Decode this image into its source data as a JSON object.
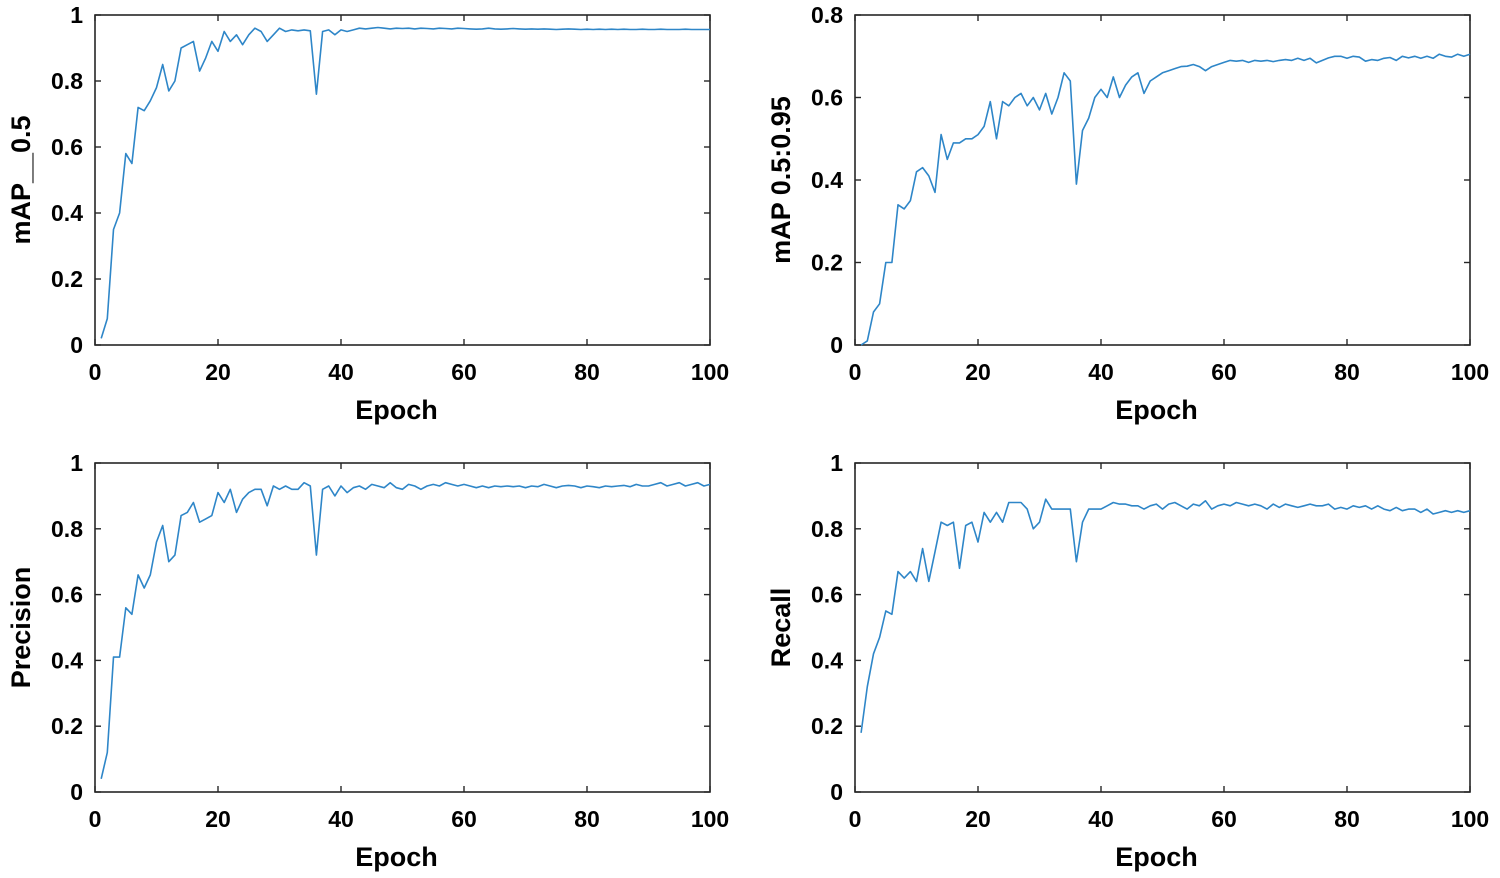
{
  "chart_data": [
    {
      "type": "line",
      "xlabel": "Epoch",
      "ylabel": "mAP__0.5",
      "xlim": [
        0,
        100
      ],
      "ylim": [
        0,
        1
      ],
      "xticks": [
        "0",
        "20",
        "40",
        "60",
        "80",
        "100"
      ],
      "yticks": [
        "0",
        "0.2",
        "0.4",
        "0.6",
        "0.8",
        "1"
      ],
      "grid": false,
      "line_color": "#2e86c8",
      "x": [
        1,
        2,
        3,
        4,
        5,
        6,
        7,
        8,
        9,
        10,
        11,
        12,
        13,
        14,
        15,
        16,
        17,
        18,
        19,
        20,
        21,
        22,
        23,
        24,
        25,
        26,
        27,
        28,
        29,
        30,
        31,
        32,
        33,
        34,
        35,
        36,
        37,
        38,
        39,
        40,
        41,
        42,
        43,
        44,
        45,
        46,
        47,
        48,
        49,
        50,
        51,
        52,
        53,
        54,
        55,
        56,
        57,
        58,
        59,
        60,
        61,
        62,
        63,
        64,
        65,
        66,
        67,
        68,
        69,
        70,
        71,
        72,
        73,
        74,
        75,
        76,
        77,
        78,
        79,
        80,
        81,
        82,
        83,
        84,
        85,
        86,
        87,
        88,
        89,
        90,
        91,
        92,
        93,
        94,
        95,
        96,
        97,
        98,
        99,
        100
      ],
      "y": [
        0.02,
        0.08,
        0.35,
        0.4,
        0.58,
        0.55,
        0.72,
        0.71,
        0.74,
        0.78,
        0.85,
        0.77,
        0.8,
        0.9,
        0.91,
        0.92,
        0.83,
        0.87,
        0.92,
        0.89,
        0.95,
        0.92,
        0.94,
        0.91,
        0.94,
        0.96,
        0.95,
        0.92,
        0.94,
        0.96,
        0.95,
        0.955,
        0.952,
        0.955,
        0.952,
        0.76,
        0.95,
        0.955,
        0.94,
        0.955,
        0.95,
        0.955,
        0.96,
        0.958,
        0.96,
        0.962,
        0.96,
        0.958,
        0.96,
        0.959,
        0.96,
        0.958,
        0.96,
        0.959,
        0.958,
        0.96,
        0.959,
        0.958,
        0.96,
        0.959,
        0.958,
        0.957,
        0.958,
        0.96,
        0.958,
        0.957,
        0.958,
        0.959,
        0.958,
        0.957,
        0.958,
        0.957,
        0.958,
        0.957,
        0.956,
        0.957,
        0.958,
        0.957,
        0.956,
        0.957,
        0.956,
        0.957,
        0.956,
        0.957,
        0.956,
        0.957,
        0.956,
        0.956,
        0.957,
        0.956,
        0.956,
        0.957,
        0.956,
        0.956,
        0.956,
        0.957,
        0.956,
        0.956,
        0.956,
        0.956
      ]
    },
    {
      "type": "line",
      "xlabel": "Epoch",
      "ylabel": "mAP 0.5:0.95",
      "xlim": [
        0,
        100
      ],
      "ylim": [
        0,
        0.8
      ],
      "xticks": [
        "0",
        "20",
        "40",
        "60",
        "80",
        "100"
      ],
      "yticks": [
        "0",
        "0.2",
        "0.4",
        "0.6",
        "0.8"
      ],
      "grid": false,
      "line_color": "#2e86c8",
      "x": [
        1,
        2,
        3,
        4,
        5,
        6,
        7,
        8,
        9,
        10,
        11,
        12,
        13,
        14,
        15,
        16,
        17,
        18,
        19,
        20,
        21,
        22,
        23,
        24,
        25,
        26,
        27,
        28,
        29,
        30,
        31,
        32,
        33,
        34,
        35,
        36,
        37,
        38,
        39,
        40,
        41,
        42,
        43,
        44,
        45,
        46,
        47,
        48,
        49,
        50,
        51,
        52,
        53,
        54,
        55,
        56,
        57,
        58,
        59,
        60,
        61,
        62,
        63,
        64,
        65,
        66,
        67,
        68,
        69,
        70,
        71,
        72,
        73,
        74,
        75,
        76,
        77,
        78,
        79,
        80,
        81,
        82,
        83,
        84,
        85,
        86,
        87,
        88,
        89,
        90,
        91,
        92,
        93,
        94,
        95,
        96,
        97,
        98,
        99,
        100
      ],
      "y": [
        0.0,
        0.01,
        0.08,
        0.1,
        0.2,
        0.2,
        0.34,
        0.33,
        0.35,
        0.42,
        0.43,
        0.41,
        0.37,
        0.51,
        0.45,
        0.49,
        0.49,
        0.5,
        0.5,
        0.51,
        0.53,
        0.59,
        0.5,
        0.59,
        0.58,
        0.6,
        0.61,
        0.58,
        0.6,
        0.57,
        0.61,
        0.56,
        0.6,
        0.66,
        0.64,
        0.39,
        0.52,
        0.55,
        0.6,
        0.62,
        0.6,
        0.65,
        0.6,
        0.63,
        0.65,
        0.66,
        0.61,
        0.64,
        0.65,
        0.66,
        0.665,
        0.67,
        0.675,
        0.676,
        0.68,
        0.675,
        0.665,
        0.675,
        0.68,
        0.685,
        0.69,
        0.688,
        0.69,
        0.685,
        0.69,
        0.688,
        0.69,
        0.687,
        0.69,
        0.692,
        0.69,
        0.695,
        0.69,
        0.695,
        0.684,
        0.69,
        0.696,
        0.7,
        0.7,
        0.695,
        0.7,
        0.698,
        0.688,
        0.692,
        0.69,
        0.695,
        0.697,
        0.69,
        0.7,
        0.696,
        0.7,
        0.695,
        0.7,
        0.695,
        0.705,
        0.7,
        0.698,
        0.705,
        0.7,
        0.705
      ]
    },
    {
      "type": "line",
      "xlabel": "Epoch",
      "ylabel": "Precision",
      "xlim": [
        0,
        100
      ],
      "ylim": [
        0,
        1
      ],
      "xticks": [
        "0",
        "20",
        "40",
        "60",
        "80",
        "100"
      ],
      "yticks": [
        "0",
        "0.2",
        "0.4",
        "0.6",
        "0.8",
        "1"
      ],
      "grid": false,
      "line_color": "#2e86c8",
      "x": [
        1,
        2,
        3,
        4,
        5,
        6,
        7,
        8,
        9,
        10,
        11,
        12,
        13,
        14,
        15,
        16,
        17,
        18,
        19,
        20,
        21,
        22,
        23,
        24,
        25,
        26,
        27,
        28,
        29,
        30,
        31,
        32,
        33,
        34,
        35,
        36,
        37,
        38,
        39,
        40,
        41,
        42,
        43,
        44,
        45,
        46,
        47,
        48,
        49,
        50,
        51,
        52,
        53,
        54,
        55,
        56,
        57,
        58,
        59,
        60,
        61,
        62,
        63,
        64,
        65,
        66,
        67,
        68,
        69,
        70,
        71,
        72,
        73,
        74,
        75,
        76,
        77,
        78,
        79,
        80,
        81,
        82,
        83,
        84,
        85,
        86,
        87,
        88,
        89,
        90,
        91,
        92,
        93,
        94,
        95,
        96,
        97,
        98,
        99,
        100
      ],
      "y": [
        0.04,
        0.12,
        0.41,
        0.41,
        0.56,
        0.54,
        0.66,
        0.62,
        0.66,
        0.76,
        0.81,
        0.7,
        0.72,
        0.84,
        0.85,
        0.88,
        0.82,
        0.83,
        0.84,
        0.91,
        0.88,
        0.92,
        0.85,
        0.89,
        0.91,
        0.92,
        0.92,
        0.87,
        0.93,
        0.92,
        0.93,
        0.92,
        0.92,
        0.94,
        0.93,
        0.72,
        0.92,
        0.93,
        0.9,
        0.93,
        0.91,
        0.925,
        0.93,
        0.92,
        0.935,
        0.93,
        0.925,
        0.94,
        0.925,
        0.92,
        0.935,
        0.93,
        0.92,
        0.93,
        0.935,
        0.93,
        0.94,
        0.935,
        0.93,
        0.935,
        0.93,
        0.925,
        0.93,
        0.925,
        0.93,
        0.928,
        0.93,
        0.928,
        0.93,
        0.925,
        0.93,
        0.928,
        0.935,
        0.93,
        0.925,
        0.93,
        0.932,
        0.93,
        0.925,
        0.93,
        0.928,
        0.925,
        0.93,
        0.928,
        0.93,
        0.932,
        0.928,
        0.935,
        0.93,
        0.93,
        0.935,
        0.94,
        0.93,
        0.935,
        0.94,
        0.93,
        0.935,
        0.94,
        0.93,
        0.935
      ]
    },
    {
      "type": "line",
      "xlabel": "Epoch",
      "ylabel": "Recall",
      "xlim": [
        0,
        100
      ],
      "ylim": [
        0,
        1
      ],
      "xticks": [
        "0",
        "20",
        "40",
        "60",
        "80",
        "100"
      ],
      "yticks": [
        "0",
        "0.2",
        "0.4",
        "0.6",
        "0.8",
        "1"
      ],
      "grid": false,
      "line_color": "#2e86c8",
      "x": [
        1,
        2,
        3,
        4,
        5,
        6,
        7,
        8,
        9,
        10,
        11,
        12,
        13,
        14,
        15,
        16,
        17,
        18,
        19,
        20,
        21,
        22,
        23,
        24,
        25,
        26,
        27,
        28,
        29,
        30,
        31,
        32,
        33,
        34,
        35,
        36,
        37,
        38,
        39,
        40,
        41,
        42,
        43,
        44,
        45,
        46,
        47,
        48,
        49,
        50,
        51,
        52,
        53,
        54,
        55,
        56,
        57,
        58,
        59,
        60,
        61,
        62,
        63,
        64,
        65,
        66,
        67,
        68,
        69,
        70,
        71,
        72,
        73,
        74,
        75,
        76,
        77,
        78,
        79,
        80,
        81,
        82,
        83,
        84,
        85,
        86,
        87,
        88,
        89,
        90,
        91,
        92,
        93,
        94,
        95,
        96,
        97,
        98,
        99,
        100
      ],
      "y": [
        0.18,
        0.32,
        0.42,
        0.47,
        0.55,
        0.54,
        0.67,
        0.65,
        0.67,
        0.64,
        0.74,
        0.64,
        0.73,
        0.82,
        0.81,
        0.82,
        0.68,
        0.81,
        0.82,
        0.76,
        0.85,
        0.82,
        0.85,
        0.82,
        0.88,
        0.88,
        0.88,
        0.86,
        0.8,
        0.82,
        0.89,
        0.86,
        0.86,
        0.86,
        0.86,
        0.7,
        0.82,
        0.86,
        0.86,
        0.86,
        0.87,
        0.88,
        0.875,
        0.875,
        0.87,
        0.87,
        0.86,
        0.87,
        0.875,
        0.86,
        0.875,
        0.88,
        0.87,
        0.86,
        0.875,
        0.87,
        0.885,
        0.86,
        0.87,
        0.875,
        0.87,
        0.88,
        0.875,
        0.87,
        0.875,
        0.87,
        0.86,
        0.875,
        0.865,
        0.875,
        0.87,
        0.865,
        0.87,
        0.875,
        0.87,
        0.87,
        0.875,
        0.86,
        0.865,
        0.86,
        0.87,
        0.865,
        0.87,
        0.86,
        0.87,
        0.86,
        0.855,
        0.865,
        0.855,
        0.86,
        0.86,
        0.85,
        0.86,
        0.845,
        0.85,
        0.855,
        0.85,
        0.855,
        0.85,
        0.855
      ]
    }
  ]
}
